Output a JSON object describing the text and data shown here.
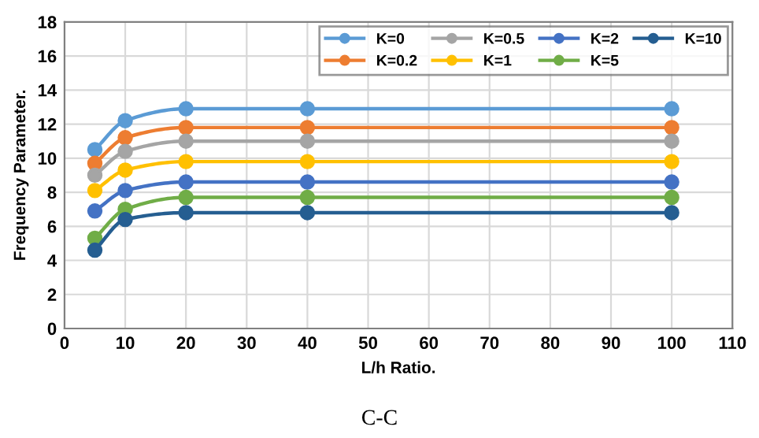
{
  "chart_data": {
    "type": "line",
    "xlabel": "L/h Ratio.",
    "ylabel": "Frequency Parameter.",
    "annotations": [
      "C-C"
    ],
    "x": [
      5,
      10,
      20,
      40,
      100
    ],
    "xlim": [
      0,
      110
    ],
    "xticks": [
      0,
      10,
      20,
      30,
      40,
      50,
      60,
      70,
      80,
      90,
      100,
      110
    ],
    "ylim": [
      0,
      18
    ],
    "yticks": [
      0,
      2,
      4,
      6,
      8,
      10,
      12,
      14,
      16,
      18
    ],
    "grid": true,
    "legend": "top right",
    "marker": "circle",
    "line_style": "solid",
    "series": [
      {
        "name": "K=0",
        "color": "#5b9bd5",
        "values": [
          10.5,
          12.2,
          12.9,
          12.9,
          12.9
        ]
      },
      {
        "name": "K=0.2",
        "color": "#ed7d31",
        "values": [
          9.7,
          11.2,
          11.8,
          11.8,
          11.8
        ]
      },
      {
        "name": "K=0.5",
        "color": "#a5a5a5",
        "values": [
          9.0,
          10.4,
          11.0,
          11.0,
          11.0
        ]
      },
      {
        "name": "K=1",
        "color": "#ffc000",
        "values": [
          8.1,
          9.3,
          9.8,
          9.8,
          9.8
        ]
      },
      {
        "name": "K=2",
        "color": "#4472c4",
        "values": [
          6.9,
          8.1,
          8.6,
          8.6,
          8.6
        ]
      },
      {
        "name": "K=5",
        "color": "#70ad47",
        "values": [
          5.3,
          7.0,
          7.7,
          7.7,
          7.7
        ]
      },
      {
        "name": "K=10",
        "color": "#255e91",
        "values": [
          4.6,
          6.4,
          6.8,
          6.8,
          6.8
        ]
      }
    ]
  }
}
